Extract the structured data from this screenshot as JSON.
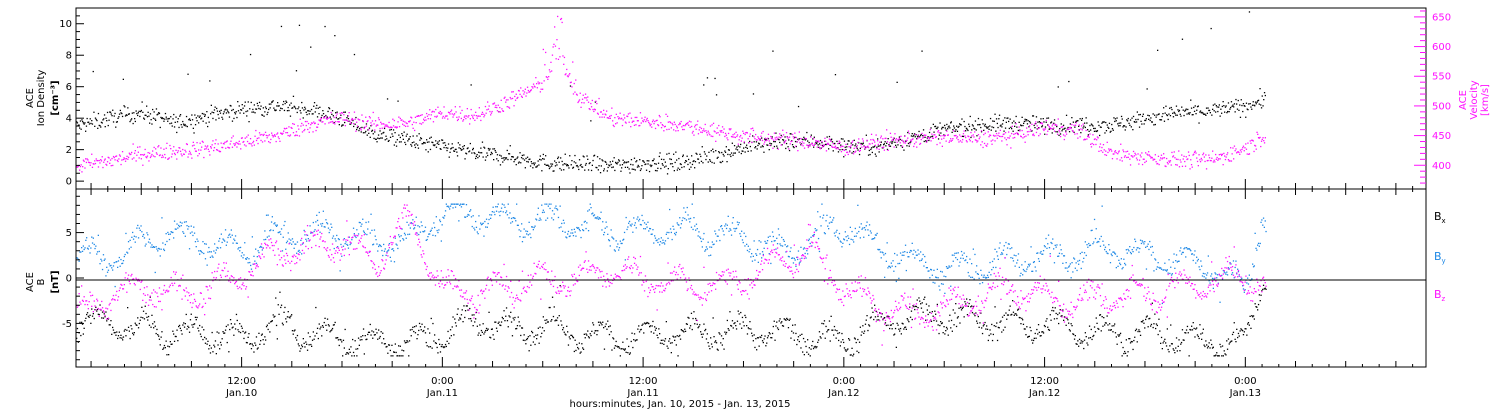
{
  "x_axis": {
    "title": "hours:minutes, Jan. 10, 2015 - Jan. 13, 2015",
    "ticks": [
      {
        "t": 12,
        "time": "12:00",
        "date": "Jan.10"
      },
      {
        "t": 24,
        "time": "0:00",
        "date": "Jan.11"
      },
      {
        "t": 36,
        "time": "12:00",
        "date": "Jan.11"
      },
      {
        "t": 48,
        "time": "0:00",
        "date": "Jan.12"
      },
      {
        "t": 60,
        "time": "12:00",
        "date": "Jan.12"
      },
      {
        "t": 72,
        "time": "0:00",
        "date": "Jan.13"
      }
    ],
    "range_hours": [
      2.1,
      82.8
    ],
    "data_end_hours": 73.2
  },
  "panel_top": {
    "left_label": [
      "ACE",
      "Ion Density",
      "[cm⁻³]"
    ],
    "right_label": [
      "ACE",
      "Velocity",
      "[km/s]"
    ],
    "left_ticks": [
      "0",
      "2",
      "4",
      "6",
      "8",
      "10"
    ],
    "right_ticks": [
      "400",
      "450",
      "500",
      "550",
      "600",
      "650"
    ]
  },
  "panel_bottom": {
    "left_label": [
      "ACE",
      "B",
      "[nT]"
    ],
    "ticks": [
      "-5",
      "0",
      "5"
    ],
    "legend": [
      {
        "label": "Bx",
        "base": "B",
        "sub": "x",
        "color": "#000000"
      },
      {
        "label": "By",
        "base": "B",
        "sub": "y",
        "color": "#1e88e5"
      },
      {
        "label": "Bz",
        "base": "B",
        "sub": "z",
        "color": "#ff10ff"
      }
    ]
  },
  "chart_data": [
    {
      "type": "scatter",
      "title": "",
      "xlabel": "hours:minutes, Jan. 10, 2015 - Jan. 13, 2015",
      "ylabel": "ACE Ion Density [cm⁻³]",
      "y2label": "ACE Velocity [km/s]",
      "xlim_hours": [
        2.1,
        82.8
      ],
      "ylim": [
        -0.5,
        11
      ],
      "y2lim": [
        360,
        665
      ],
      "series": [
        {
          "name": "ACE Ion Density",
          "axis": "left",
          "color": "#000000",
          "x": [
            2,
            4,
            6,
            8,
            10,
            12,
            14,
            16,
            18,
            20,
            22,
            24,
            26,
            28,
            30,
            32,
            34,
            36,
            38,
            40,
            42,
            44,
            46,
            48,
            50,
            52,
            54,
            56,
            58,
            60,
            62,
            64,
            66,
            68,
            70,
            72,
            73
          ],
          "y": [
            3.5,
            4.0,
            4.4,
            3.7,
            4.2,
            4.6,
            4.8,
            4.6,
            4.0,
            3.0,
            2.6,
            2.2,
            1.8,
            1.6,
            1.2,
            1.1,
            1.0,
            1.2,
            1.2,
            1.6,
            2.2,
            2.5,
            2.6,
            2.3,
            2.2,
            2.8,
            3.3,
            3.6,
            3.7,
            3.6,
            3.6,
            3.6,
            4.0,
            4.4,
            4.5,
            4.8,
            5.2
          ]
        },
        {
          "name": "ACE Velocity",
          "axis": "right",
          "color": "#ff10ff",
          "x": [
            2,
            4,
            6,
            8,
            10,
            12,
            14,
            16,
            18,
            20,
            22,
            24,
            26,
            28,
            30,
            31,
            32,
            34,
            36,
            38,
            40,
            42,
            44,
            46,
            48,
            50,
            52,
            54,
            56,
            58,
            60,
            62,
            64,
            66,
            68,
            70,
            72,
            73
          ],
          "y": [
            400,
            408,
            420,
            425,
            430,
            440,
            450,
            470,
            480,
            470,
            472,
            490,
            485,
            510,
            540,
            585,
            520,
            480,
            475,
            470,
            460,
            450,
            445,
            440,
            430,
            440,
            445,
            448,
            445,
            450,
            465,
            460,
            420,
            415,
            410,
            410,
            430,
            450
          ]
        }
      ]
    },
    {
      "type": "scatter",
      "title": "",
      "xlabel": "hours:minutes, Jan. 10, 2015 - Jan. 13, 2015",
      "ylabel": "ACE B [nT]",
      "xlim_hours": [
        2.1,
        82.8
      ],
      "ylim": [
        -9.8,
        9.8
      ],
      "series": [
        {
          "name": "Bx",
          "color": "#000000",
          "x": [
            2,
            4,
            6,
            8,
            10,
            12,
            14,
            16,
            18,
            20,
            22,
            24,
            26,
            28,
            30,
            32,
            34,
            36,
            38,
            40,
            42,
            44,
            46,
            48,
            50,
            52,
            54,
            56,
            58,
            60,
            62,
            64,
            66,
            68,
            70,
            72,
            73
          ],
          "y": [
            -4.5,
            -5.0,
            -5.5,
            -6.0,
            -6.0,
            -6.5,
            -5.0,
            -6.0,
            -6.5,
            -7.0,
            -7.0,
            -6.0,
            -4.5,
            -5.5,
            -5.0,
            -6.0,
            -6.5,
            -6.5,
            -6.0,
            -6.0,
            -5.5,
            -6.0,
            -6.5,
            -6.5,
            -5.0,
            -4.0,
            -4.0,
            -4.5,
            -5.0,
            -5.0,
            -5.5,
            -6.0,
            -6.0,
            -6.5,
            -7.0,
            -7.0,
            0.0
          ]
        },
        {
          "name": "By",
          "color": "#1e88e5",
          "x": [
            2,
            4,
            6,
            8,
            10,
            12,
            14,
            16,
            18,
            20,
            22,
            24,
            26,
            28,
            30,
            32,
            34,
            36,
            38,
            40,
            42,
            44,
            46,
            48,
            50,
            52,
            54,
            56,
            58,
            60,
            62,
            64,
            66,
            68,
            70,
            72,
            73
          ],
          "y": [
            3.0,
            2.0,
            4.0,
            5.0,
            4.0,
            3.0,
            4.5,
            5.0,
            5.0,
            4.0,
            4.0,
            7.5,
            7.0,
            6.5,
            6.5,
            6.0,
            5.5,
            5.0,
            5.5,
            5.0,
            4.5,
            3.0,
            4.0,
            6.0,
            3.5,
            2.0,
            1.0,
            1.5,
            2.0,
            2.5,
            3.0,
            3.5,
            2.5,
            2.0,
            1.0,
            -1.0,
            7.0
          ]
        },
        {
          "name": "Bz",
          "color": "#ff10ff",
          "x": [
            2,
            4,
            6,
            8,
            10,
            12,
            14,
            16,
            18,
            20,
            22,
            24,
            26,
            28,
            30,
            32,
            34,
            36,
            38,
            40,
            42,
            44,
            46,
            48,
            50,
            52,
            54,
            56,
            58,
            60,
            62,
            64,
            66,
            68,
            70,
            72,
            73
          ],
          "y": [
            -4.0,
            -2.0,
            -1.0,
            -1.5,
            -1.0,
            0.5,
            3.0,
            3.5,
            4.0,
            2.0,
            6.5,
            -1.0,
            -1.5,
            -1.0,
            0.0,
            0.0,
            1.0,
            0.0,
            -0.5,
            -1.0,
            0.0,
            2.0,
            3.0,
            -1.0,
            -3.0,
            -4.0,
            -3.5,
            -2.0,
            -1.0,
            -2.0,
            -2.5,
            -2.0,
            -1.5,
            -1.0,
            -0.5,
            0.5,
            -1.0
          ]
        }
      ]
    }
  ]
}
